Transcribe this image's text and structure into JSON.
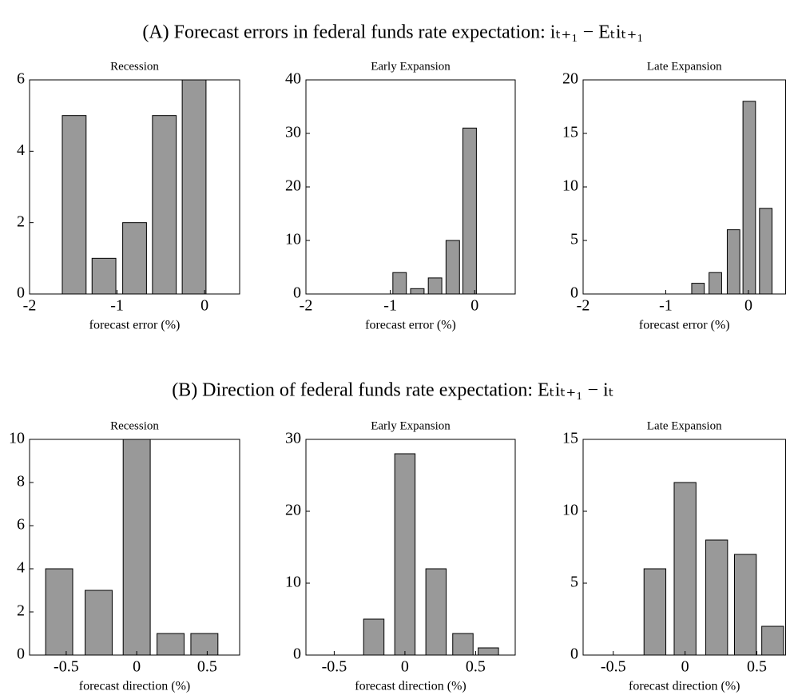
{
  "sections": [
    {
      "title": "(A) Forecast errors in federal funds rate expectation: iₜ₊₁ − Eₜiₜ₊₁"
    },
    {
      "title": "(B) Direction of federal funds rate expectation: Eₜiₜ₊₁ − iₜ"
    }
  ],
  "chart_data": [
    {
      "type": "bar",
      "title": "Recession",
      "x_label": "forecast error (%)",
      "color": "#999999",
      "x": [
        -1.49,
        -1.15,
        -0.8,
        -0.46,
        -0.12
      ],
      "values": [
        5,
        1,
        2,
        5,
        6
      ],
      "xlim": [
        -2,
        0.4
      ],
      "xticks": [
        -2,
        -1,
        0
      ],
      "ylim": [
        0,
        6
      ],
      "yticks": [
        0,
        2,
        4,
        6
      ]
    },
    {
      "type": "bar",
      "title": "Early Expansion",
      "x_label": "forecast error (%)",
      "color": "#999999",
      "x": [
        -0.89,
        -0.68,
        -0.47,
        -0.26,
        -0.06
      ],
      "values": [
        4,
        1,
        3,
        10,
        31
      ],
      "xlim": [
        -2,
        0.48
      ],
      "xticks": [
        -2,
        -1,
        0
      ],
      "ylim": [
        0,
        40
      ],
      "yticks": [
        0,
        10,
        20,
        30,
        40
      ]
    },
    {
      "type": "bar",
      "title": "Late Expansion",
      "x_label": "forecast error (%)",
      "color": "#999999",
      "x": [
        -0.61,
        -0.4,
        -0.18,
        0.01,
        0.21
      ],
      "values": [
        1,
        2,
        6,
        18,
        8
      ],
      "xlim": [
        -2,
        0.45
      ],
      "xticks": [
        -2,
        -1,
        0
      ],
      "ylim": [
        0,
        20
      ],
      "yticks": [
        0,
        5,
        10,
        15,
        20
      ]
    },
    {
      "type": "bar",
      "title": "Recession",
      "x_label": "forecast direction (%)",
      "color": "#999999",
      "x": [
        -0.55,
        -0.27,
        0,
        0.24,
        0.48
      ],
      "values": [
        4,
        3,
        10,
        1,
        1
      ],
      "xlim": [
        -0.76,
        0.73
      ],
      "xticks": [
        -0.5,
        0,
        0.5
      ],
      "ylim": [
        0,
        10
      ],
      "yticks": [
        0,
        2,
        4,
        6,
        8,
        10
      ]
    },
    {
      "type": "bar",
      "title": "Early Expansion",
      "x_label": "forecast direction (%)",
      "color": "#999999",
      "x": [
        -0.22,
        0,
        0.22,
        0.41,
        0.59
      ],
      "values": [
        5,
        28,
        12,
        3,
        1
      ],
      "xlim": [
        -0.7,
        0.78
      ],
      "xticks": [
        -0.5,
        0,
        0.5
      ],
      "ylim": [
        0,
        30
      ],
      "yticks": [
        0,
        10,
        20,
        30
      ]
    },
    {
      "type": "bar",
      "title": "Late Expansion",
      "x_label": "forecast direction (%)",
      "color": "#999999",
      "x": [
        -0.21,
        0,
        0.22,
        0.42,
        0.61
      ],
      "values": [
        6,
        12,
        8,
        7,
        2
      ],
      "xlim": [
        -0.71,
        0.7
      ],
      "xticks": [
        -0.5,
        0,
        0.5
      ],
      "ylim": [
        0,
        15
      ],
      "yticks": [
        0,
        5,
        10,
        15
      ]
    }
  ]
}
